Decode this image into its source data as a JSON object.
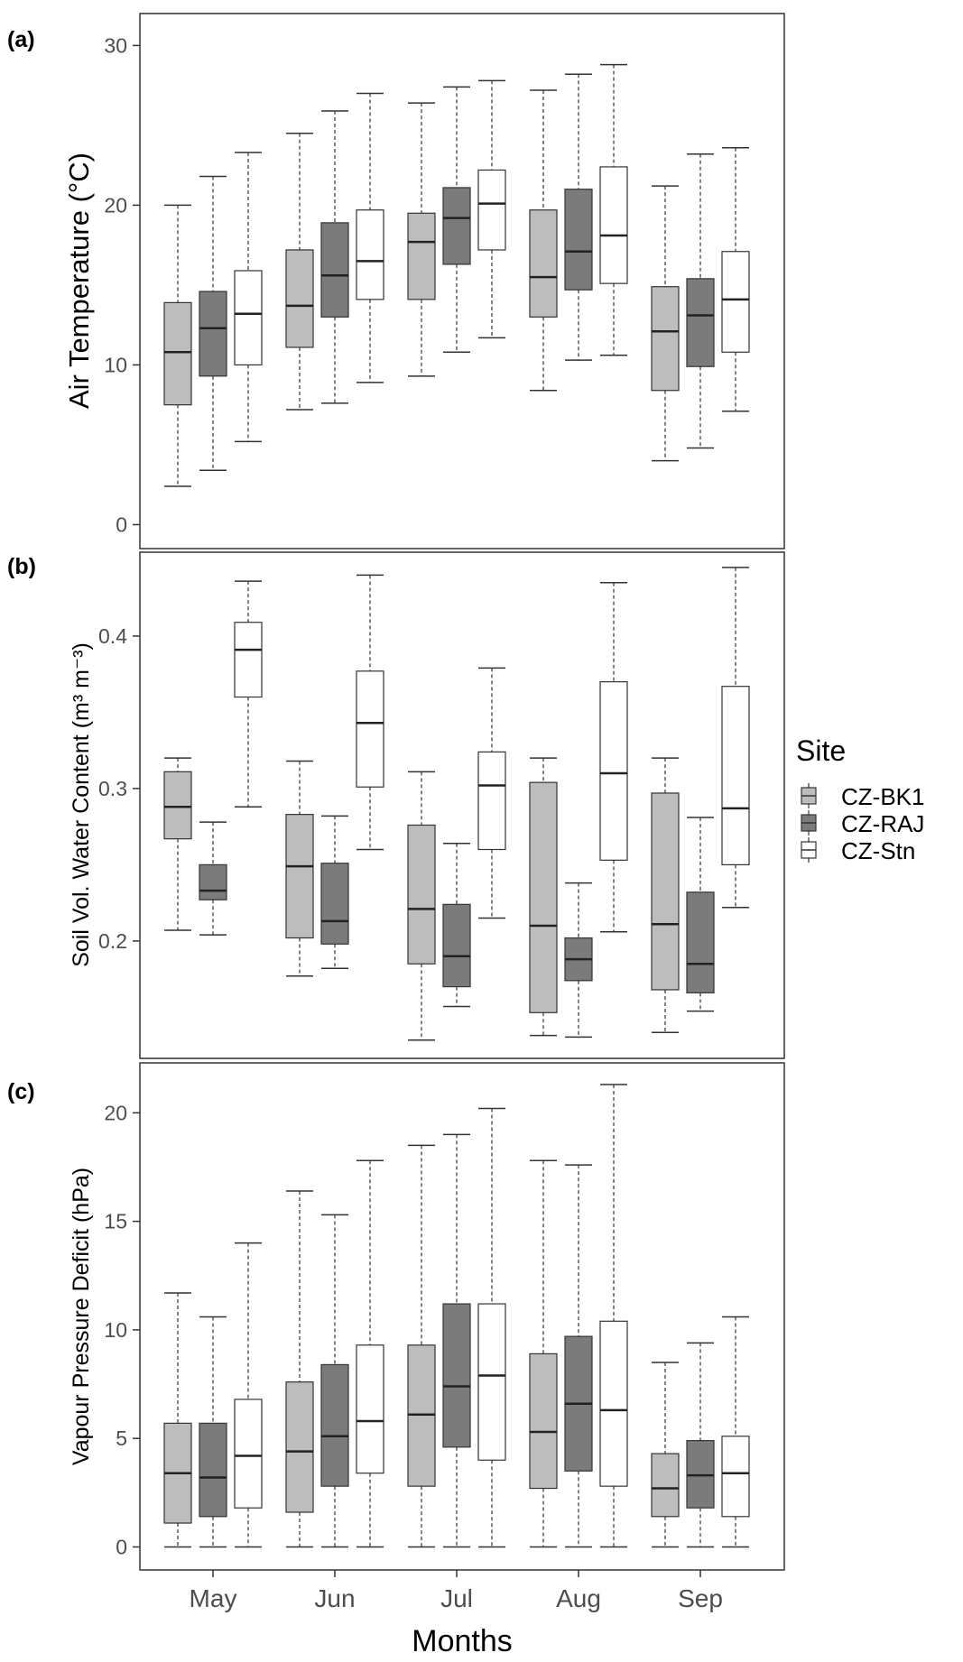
{
  "figure": {
    "xlabel": "Months",
    "categories": [
      "May",
      "Jun",
      "Jul",
      "Aug",
      "Sep"
    ],
    "legend": {
      "title": "Site",
      "placement": "right",
      "entries": [
        {
          "name": "CZ-BK1",
          "color": "#bdbdbd"
        },
        {
          "name": "CZ-RAJ",
          "color": "#7b7b7b"
        },
        {
          "name": "CZ-Stn",
          "color": "#ffffff"
        }
      ]
    }
  },
  "chart_data": [
    {
      "panel": "(a)",
      "type": "box",
      "ylabel": "Air Temperature (°C)",
      "ylim": [
        -1.5,
        32
      ],
      "yticks": [
        0,
        10,
        20,
        30
      ],
      "categories": [
        "May",
        "Jun",
        "Jul",
        "Aug",
        "Sep"
      ],
      "series": [
        {
          "name": "CZ-BK1",
          "boxes": [
            {
              "min": 2.4,
              "q1": 7.5,
              "median": 10.8,
              "q3": 13.9,
              "max": 20.0
            },
            {
              "min": 7.2,
              "q1": 11.1,
              "median": 13.7,
              "q3": 17.2,
              "max": 24.5
            },
            {
              "min": 9.3,
              "q1": 14.1,
              "median": 17.7,
              "q3": 19.5,
              "max": 26.4
            },
            {
              "min": 8.4,
              "q1": 13.0,
              "median": 15.5,
              "q3": 19.7,
              "max": 27.2
            },
            {
              "min": 4.0,
              "q1": 8.4,
              "median": 12.1,
              "q3": 14.9,
              "max": 21.2
            }
          ]
        },
        {
          "name": "CZ-RAJ",
          "boxes": [
            {
              "min": 3.4,
              "q1": 9.3,
              "median": 12.3,
              "q3": 14.6,
              "max": 21.8
            },
            {
              "min": 7.6,
              "q1": 13.0,
              "median": 15.6,
              "q3": 18.9,
              "max": 25.9
            },
            {
              "min": 10.8,
              "q1": 16.3,
              "median": 19.2,
              "q3": 21.1,
              "max": 27.4
            },
            {
              "min": 10.3,
              "q1": 14.7,
              "median": 17.1,
              "q3": 21.0,
              "max": 28.2
            },
            {
              "min": 4.8,
              "q1": 9.9,
              "median": 13.1,
              "q3": 15.4,
              "max": 23.2
            }
          ]
        },
        {
          "name": "CZ-Stn",
          "boxes": [
            {
              "min": 5.2,
              "q1": 10.0,
              "median": 13.2,
              "q3": 15.9,
              "max": 23.3
            },
            {
              "min": 8.9,
              "q1": 14.1,
              "median": 16.5,
              "q3": 19.7,
              "max": 27.0
            },
            {
              "min": 11.7,
              "q1": 17.2,
              "median": 20.1,
              "q3": 22.2,
              "max": 27.8
            },
            {
              "min": 10.6,
              "q1": 15.1,
              "median": 18.1,
              "q3": 22.4,
              "max": 28.8
            },
            {
              "min": 7.1,
              "q1": 10.8,
              "median": 14.1,
              "q3": 17.1,
              "max": 23.6
            }
          ]
        }
      ]
    },
    {
      "panel": "(b)",
      "type": "box",
      "ylabel": "Soil Vol. Water Content (m³ m⁻³)",
      "ylim": [
        0.123,
        0.455
      ],
      "yticks": [
        0.2,
        0.3,
        0.4
      ],
      "categories": [
        "May",
        "Jun",
        "Jul",
        "Aug",
        "Sep"
      ],
      "series": [
        {
          "name": "CZ-BK1",
          "boxes": [
            {
              "min": 0.207,
              "q1": 0.267,
              "median": 0.288,
              "q3": 0.311,
              "max": 0.32
            },
            {
              "min": 0.177,
              "q1": 0.202,
              "median": 0.249,
              "q3": 0.283,
              "max": 0.318
            },
            {
              "min": 0.135,
              "q1": 0.185,
              "median": 0.221,
              "q3": 0.276,
              "max": 0.311
            },
            {
              "min": 0.138,
              "q1": 0.153,
              "median": 0.21,
              "q3": 0.304,
              "max": 0.32
            },
            {
              "min": 0.14,
              "q1": 0.168,
              "median": 0.211,
              "q3": 0.297,
              "max": 0.32
            }
          ]
        },
        {
          "name": "CZ-RAJ",
          "boxes": [
            {
              "min": 0.204,
              "q1": 0.227,
              "median": 0.233,
              "q3": 0.25,
              "max": 0.278
            },
            {
              "min": 0.182,
              "q1": 0.198,
              "median": 0.213,
              "q3": 0.251,
              "max": 0.282
            },
            {
              "min": 0.157,
              "q1": 0.17,
              "median": 0.19,
              "q3": 0.224,
              "max": 0.264
            },
            {
              "min": 0.137,
              "q1": 0.174,
              "median": 0.188,
              "q3": 0.202,
              "max": 0.238
            },
            {
              "min": 0.154,
              "q1": 0.166,
              "median": 0.185,
              "q3": 0.232,
              "max": 0.281
            }
          ]
        },
        {
          "name": "CZ-Stn",
          "boxes": [
            {
              "min": 0.288,
              "q1": 0.36,
              "median": 0.391,
              "q3": 0.409,
              "max": 0.436
            },
            {
              "min": 0.26,
              "q1": 0.301,
              "median": 0.343,
              "q3": 0.377,
              "max": 0.44
            },
            {
              "min": 0.215,
              "q1": 0.26,
              "median": 0.302,
              "q3": 0.324,
              "max": 0.379
            },
            {
              "min": 0.206,
              "q1": 0.253,
              "median": 0.31,
              "q3": 0.37,
              "max": 0.435
            },
            {
              "min": 0.222,
              "q1": 0.25,
              "median": 0.287,
              "q3": 0.367,
              "max": 0.445
            }
          ]
        }
      ]
    },
    {
      "panel": "(c)",
      "type": "box",
      "ylabel": "Vapour Pressure Deficit (hPa)",
      "ylim": [
        -1.06,
        22.3
      ],
      "yticks": [
        0,
        5,
        10,
        15,
        20
      ],
      "categories": [
        "May",
        "Jun",
        "Jul",
        "Aug",
        "Sep"
      ],
      "series": [
        {
          "name": "CZ-BK1",
          "boxes": [
            {
              "min": 0.0,
              "q1": 1.1,
              "median": 3.4,
              "q3": 5.7,
              "max": 11.7
            },
            {
              "min": 0.0,
              "q1": 1.6,
              "median": 4.4,
              "q3": 7.6,
              "max": 16.4
            },
            {
              "min": 0.0,
              "q1": 2.8,
              "median": 6.1,
              "q3": 9.3,
              "max": 18.5
            },
            {
              "min": 0.0,
              "q1": 2.7,
              "median": 5.3,
              "q3": 8.9,
              "max": 17.8
            },
            {
              "min": 0.0,
              "q1": 1.4,
              "median": 2.7,
              "q3": 4.3,
              "max": 8.5
            }
          ]
        },
        {
          "name": "CZ-RAJ",
          "boxes": [
            {
              "min": 0.0,
              "q1": 1.4,
              "median": 3.2,
              "q3": 5.7,
              "max": 10.6
            },
            {
              "min": 0.0,
              "q1": 2.8,
              "median": 5.1,
              "q3": 8.4,
              "max": 15.3
            },
            {
              "min": 0.0,
              "q1": 4.6,
              "median": 7.4,
              "q3": 11.2,
              "max": 19.0
            },
            {
              "min": 0.0,
              "q1": 3.5,
              "median": 6.6,
              "q3": 9.7,
              "max": 17.6
            },
            {
              "min": 0.0,
              "q1": 1.8,
              "median": 3.3,
              "q3": 4.9,
              "max": 9.4
            }
          ]
        },
        {
          "name": "CZ-Stn",
          "boxes": [
            {
              "min": 0.0,
              "q1": 1.8,
              "median": 4.2,
              "q3": 6.8,
              "max": 14.0
            },
            {
              "min": 0.0,
              "q1": 3.4,
              "median": 5.8,
              "q3": 9.3,
              "max": 17.8
            },
            {
              "min": 0.0,
              "q1": 4.0,
              "median": 7.9,
              "q3": 11.2,
              "max": 20.2
            },
            {
              "min": 0.0,
              "q1": 2.8,
              "median": 6.3,
              "q3": 10.4,
              "max": 21.3
            },
            {
              "min": 0.0,
              "q1": 1.4,
              "median": 3.4,
              "q3": 5.1,
              "max": 10.6
            }
          ]
        }
      ]
    }
  ]
}
